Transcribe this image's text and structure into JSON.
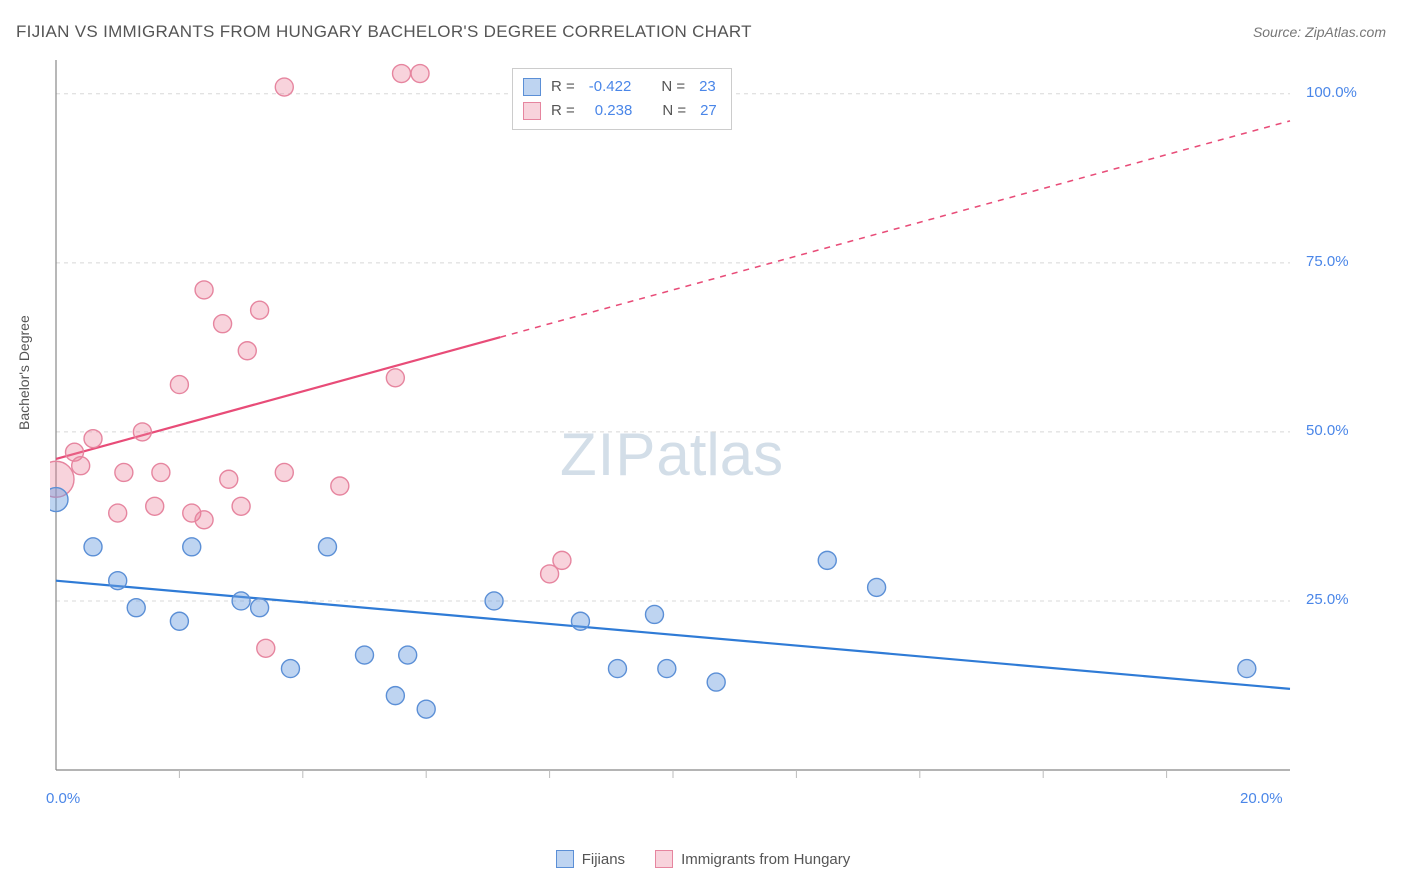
{
  "title": "FIJIAN VS IMMIGRANTS FROM HUNGARY BACHELOR'S DEGREE CORRELATION CHART",
  "source": "Source: ZipAtlas.com",
  "y_axis_label": "Bachelor's Degree",
  "watermark": {
    "zip": "ZIP",
    "atlas": "atlas"
  },
  "chart": {
    "type": "scatter",
    "background_color": "#ffffff",
    "grid_color": "#d8d8d8",
    "axis_color": "#888888",
    "tick_color": "#bbbbbb",
    "label_color": "#4a86e8",
    "xlim": [
      0,
      20
    ],
    "ylim": [
      0,
      105
    ],
    "x_ticks": [
      0,
      20
    ],
    "x_tick_labels": [
      "0.0%",
      "20.0%"
    ],
    "x_minor_ticks": [
      2,
      4,
      6,
      8,
      10,
      12,
      14,
      16,
      18
    ],
    "y_ticks": [
      25,
      50,
      75,
      100
    ],
    "y_tick_labels": [
      "25.0%",
      "50.0%",
      "75.0%",
      "100.0%"
    ],
    "series": [
      {
        "name": "Fijians",
        "marker_color_fill": "rgba(110,160,225,0.45)",
        "marker_color_stroke": "#5b8fd6",
        "line_color": "#2f7bd6",
        "line_width": 2.2,
        "marker_r": 9,
        "r_stat": "-0.422",
        "n_stat": "23",
        "trend": {
          "x1": 0,
          "y1": 28,
          "x2": 20,
          "y2": 12,
          "dash_from_x": 20
        },
        "points": [
          {
            "x": 0.0,
            "y": 40,
            "r": 12
          },
          {
            "x": 0.6,
            "y": 33
          },
          {
            "x": 1.0,
            "y": 28
          },
          {
            "x": 1.3,
            "y": 24
          },
          {
            "x": 2.0,
            "y": 22
          },
          {
            "x": 2.2,
            "y": 33
          },
          {
            "x": 3.0,
            "y": 25
          },
          {
            "x": 3.3,
            "y": 24
          },
          {
            "x": 3.8,
            "y": 15
          },
          {
            "x": 4.4,
            "y": 33
          },
          {
            "x": 5.0,
            "y": 17
          },
          {
            "x": 5.5,
            "y": 11
          },
          {
            "x": 5.7,
            "y": 17
          },
          {
            "x": 6.0,
            "y": 9
          },
          {
            "x": 7.1,
            "y": 25
          },
          {
            "x": 8.5,
            "y": 22
          },
          {
            "x": 9.1,
            "y": 15
          },
          {
            "x": 9.7,
            "y": 23
          },
          {
            "x": 9.9,
            "y": 15
          },
          {
            "x": 10.7,
            "y": 13
          },
          {
            "x": 12.5,
            "y": 31
          },
          {
            "x": 13.3,
            "y": 27
          },
          {
            "x": 19.3,
            "y": 15
          }
        ]
      },
      {
        "name": "Immigrants from Hungary",
        "marker_color_fill": "rgba(235,130,155,0.35)",
        "marker_color_stroke": "#e6859f",
        "line_color": "#e84c78",
        "line_width": 2.2,
        "marker_r": 9,
        "r_stat": "0.238",
        "n_stat": "27",
        "trend": {
          "x1": 0,
          "y1": 46,
          "x2": 20,
          "y2": 96,
          "dash_from_x": 7.2
        },
        "points": [
          {
            "x": 0.0,
            "y": 43,
            "r": 18
          },
          {
            "x": 0.3,
            "y": 47
          },
          {
            "x": 0.4,
            "y": 45
          },
          {
            "x": 0.6,
            "y": 49
          },
          {
            "x": 1.0,
            "y": 38
          },
          {
            "x": 1.1,
            "y": 44
          },
          {
            "x": 1.4,
            "y": 50
          },
          {
            "x": 1.6,
            "y": 39
          },
          {
            "x": 1.7,
            "y": 44
          },
          {
            "x": 2.0,
            "y": 57
          },
          {
            "x": 2.2,
            "y": 38
          },
          {
            "x": 2.4,
            "y": 37
          },
          {
            "x": 2.4,
            "y": 71
          },
          {
            "x": 2.7,
            "y": 66
          },
          {
            "x": 2.8,
            "y": 43
          },
          {
            "x": 3.0,
            "y": 39
          },
          {
            "x": 3.1,
            "y": 62
          },
          {
            "x": 3.3,
            "y": 68
          },
          {
            "x": 3.4,
            "y": 18
          },
          {
            "x": 3.7,
            "y": 44
          },
          {
            "x": 3.7,
            "y": 101
          },
          {
            "x": 4.6,
            "y": 42
          },
          {
            "x": 5.5,
            "y": 58
          },
          {
            "x": 5.6,
            "y": 103
          },
          {
            "x": 5.9,
            "y": 103
          },
          {
            "x": 8.0,
            "y": 29
          },
          {
            "x": 8.2,
            "y": 31
          }
        ]
      }
    ]
  },
  "legend_top": {
    "r_label": "R =",
    "n_label": "N ="
  },
  "bottom_legend": {
    "items": [
      "Fijians",
      "Immigrants from Hungary"
    ]
  }
}
